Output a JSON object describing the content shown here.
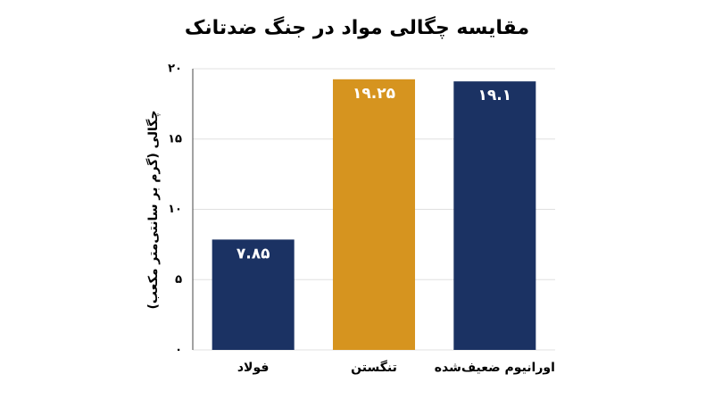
{
  "chart_data": {
    "type": "bar",
    "title": "مقایسه چگالی مواد در جنگ ضدتانک",
    "y_label": "چگالی (گرم بر سانتی‌متر مکعب)",
    "categories": [
      "فولاد",
      "تنگستن",
      "اورانیوم ضعیف‌شده"
    ],
    "values": [
      7.85,
      19.25,
      19.1
    ],
    "value_labels": [
      "۷.۸۵",
      "۱۹.۲۵",
      "۱۹.۱"
    ],
    "colors": [
      "#1b3263",
      "#d6941f",
      "#1b3263"
    ],
    "ylim": [
      0,
      20
    ],
    "yticks": [
      {
        "value": 0,
        "label": "۰"
      },
      {
        "value": 5,
        "label": "۵"
      },
      {
        "value": 10,
        "label": "۱۰"
      },
      {
        "value": 15,
        "label": "۱۵"
      },
      {
        "value": 20,
        "label": "۲۰"
      }
    ],
    "grid": true
  }
}
